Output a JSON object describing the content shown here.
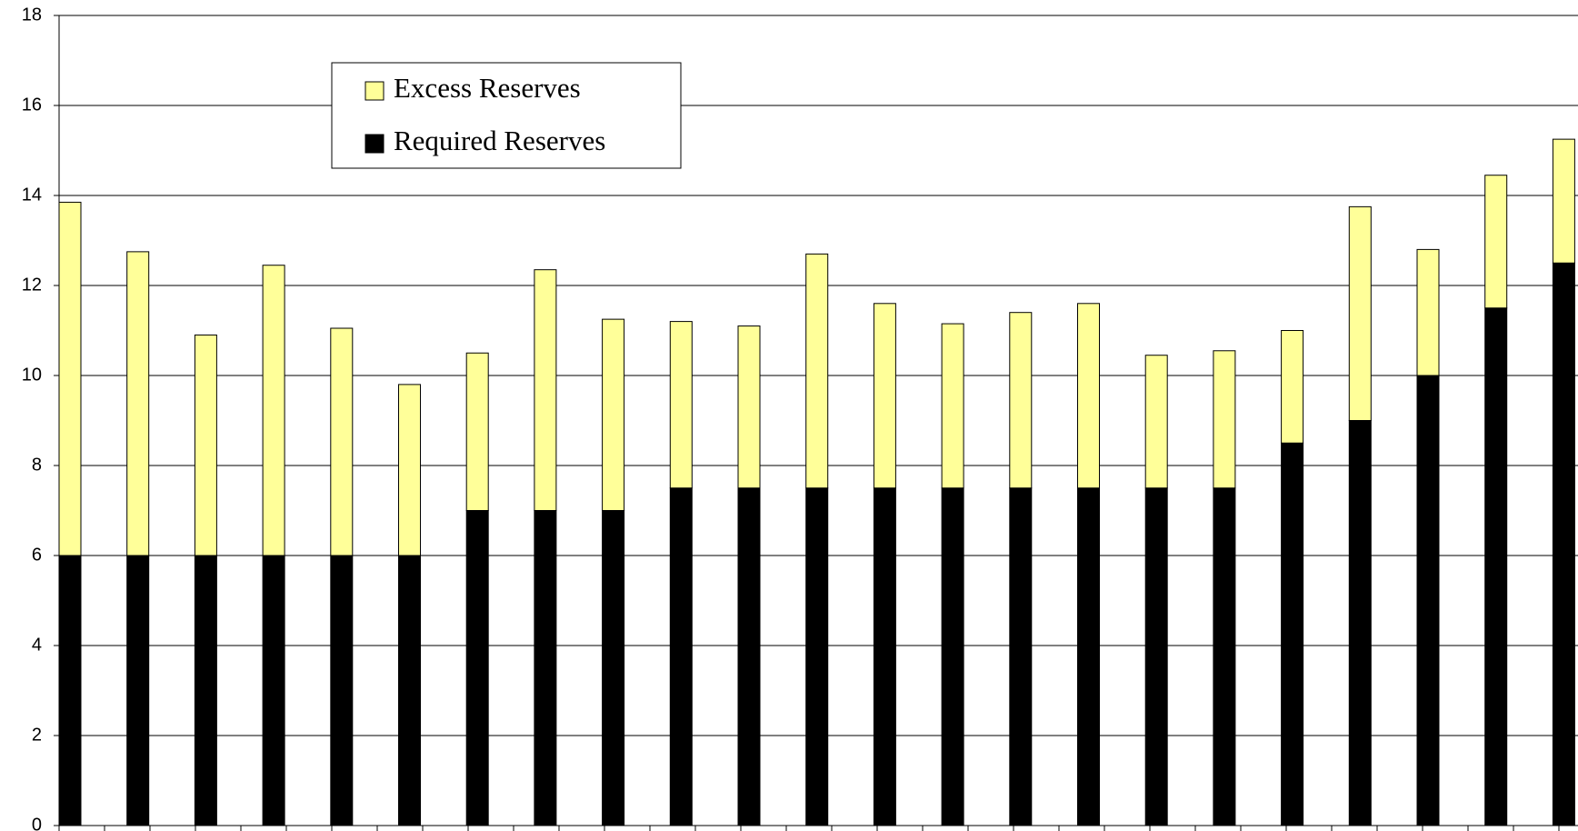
{
  "chart_data": {
    "type": "stacked_bar",
    "categories": [
      null,
      null,
      null,
      null,
      null,
      null,
      null,
      null,
      null,
      null,
      null,
      null,
      null,
      null,
      null,
      null,
      null,
      null,
      null,
      null,
      null,
      null,
      null
    ],
    "series": [
      {
        "name": "Required Reserves",
        "color": "#000000",
        "values": [
          6,
          6,
          6,
          6,
          6,
          6,
          7,
          7,
          7,
          7.5,
          7.5,
          7.5,
          7.5,
          7.5,
          7.5,
          7.5,
          7.5,
          7.5,
          8.5,
          9,
          10,
          11.5,
          12.5
        ]
      },
      {
        "name": "Excess Reserves",
        "color": "#ffff99",
        "values": [
          7.85,
          6.75,
          4.9,
          6.45,
          5.05,
          3.8,
          3.5,
          5.35,
          4.25,
          3.7,
          3.6,
          5.2,
          4.1,
          3.65,
          3.9,
          4.1,
          2.95,
          3.05,
          2.5,
          4.75,
          2.8,
          2.95,
          2.75
        ]
      }
    ],
    "ylim": [
      0,
      18
    ],
    "yticks": [
      0,
      2,
      4,
      6,
      8,
      10,
      12,
      14,
      16,
      18
    ],
    "grid": true
  }
}
